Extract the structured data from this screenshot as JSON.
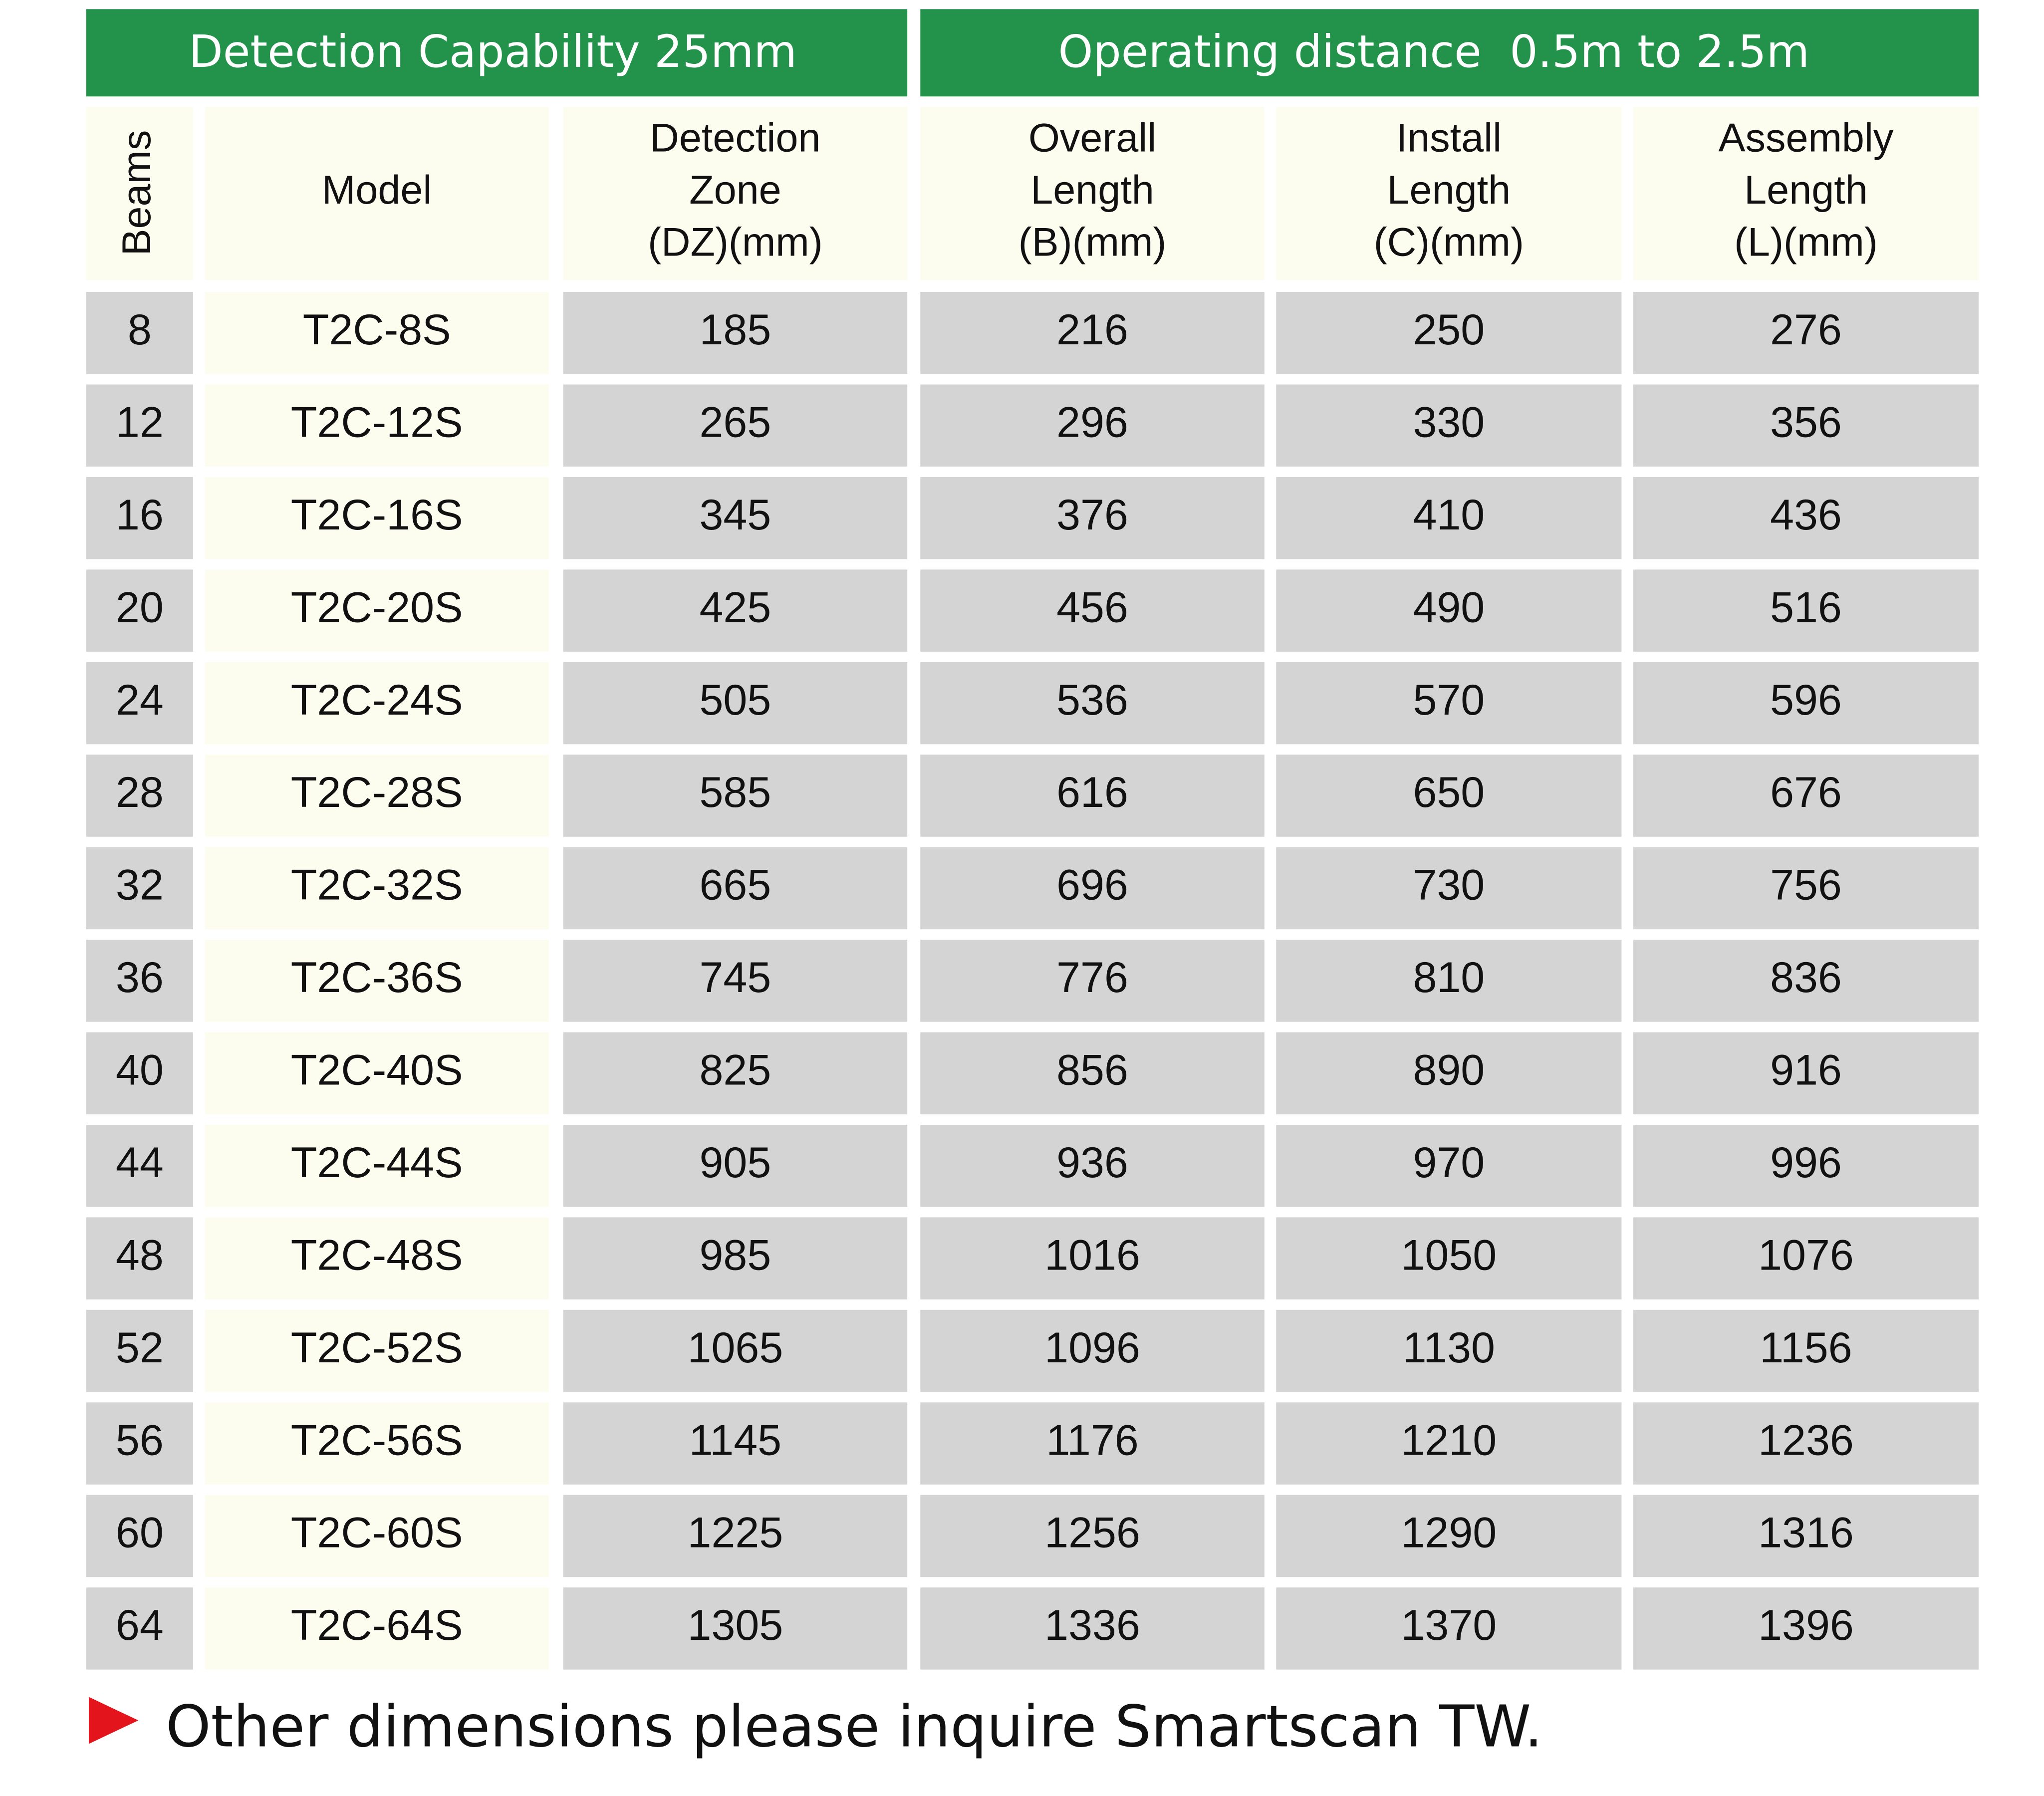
{
  "header": {
    "left": "Detection Capability 25mm",
    "right": "Operating distance  0.5m to 2.5m"
  },
  "table": {
    "columns": [
      [
        "Beams"
      ],
      [
        "Model"
      ],
      [
        "Detection",
        "Zone",
        "(DZ)(mm)"
      ],
      [
        "Overall",
        "Length",
        "(B)(mm)"
      ],
      [
        "Install",
        "Length",
        "(C)(mm)"
      ],
      [
        "Assembly",
        "Length",
        "(L)(mm)"
      ]
    ],
    "rows": [
      [
        8,
        "T2C-8S",
        185,
        216,
        250,
        276
      ],
      [
        12,
        "T2C-12S",
        265,
        296,
        330,
        356
      ],
      [
        16,
        "T2C-16S",
        345,
        376,
        410,
        436
      ],
      [
        20,
        "T2C-20S",
        425,
        456,
        490,
        516
      ],
      [
        24,
        "T2C-24S",
        505,
        536,
        570,
        596
      ],
      [
        28,
        "T2C-28S",
        585,
        616,
        650,
        676
      ],
      [
        32,
        "T2C-32S",
        665,
        696,
        730,
        756
      ],
      [
        36,
        "T2C-36S",
        745,
        776,
        810,
        836
      ],
      [
        40,
        "T2C-40S",
        825,
        856,
        890,
        916
      ],
      [
        44,
        "T2C-44S",
        905,
        936,
        970,
        996
      ],
      [
        48,
        "T2C-48S",
        985,
        1016,
        1050,
        1076
      ],
      [
        52,
        "T2C-52S",
        1065,
        1096,
        1130,
        1156
      ],
      [
        56,
        "T2C-56S",
        1145,
        1176,
        1210,
        1236
      ],
      [
        60,
        "T2C-60S",
        1225,
        1256,
        1290,
        1316
      ],
      [
        64,
        "T2C-64S",
        1305,
        1336,
        1370,
        1396
      ]
    ]
  },
  "footer": "Other dimensions please inquire Smartscan TW."
}
